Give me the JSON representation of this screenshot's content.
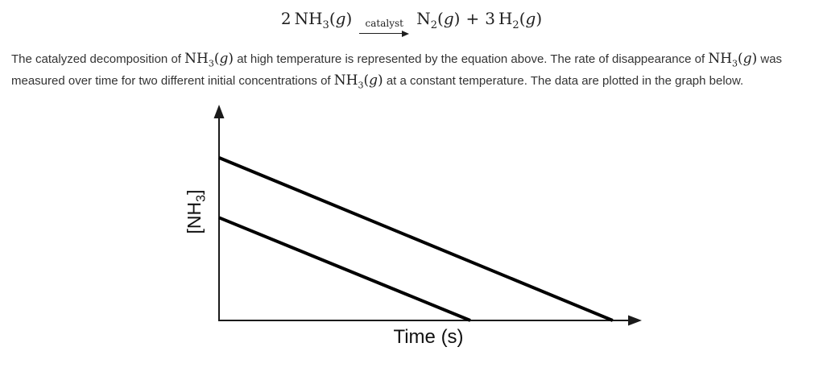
{
  "equation": {
    "reactant_coeff": "2",
    "arrow_label": "catalyst",
    "plus": "+",
    "product2_coeff": "3"
  },
  "chem": {
    "nh3": {
      "base": "NH",
      "sub": "3",
      "paren_open": "(",
      "g": "g",
      "paren_close": ")"
    },
    "n2": {
      "base": "N",
      "sub": "2",
      "paren_open": "(",
      "g": "g",
      "paren_close": ")"
    },
    "h2": {
      "base": "H",
      "sub": "2",
      "paren_open": "(",
      "g": "g",
      "paren_close": ")"
    }
  },
  "problem": {
    "seg1": "The catalyzed decomposition of ",
    "seg2": " at high temperature is represented by the equation above. The rate of disappearance of ",
    "seg3": " was measured over time for two different initial concentrations of ",
    "seg4": " at a constant temperature. The data are plotted in the graph below."
  },
  "chart_data": {
    "type": "line",
    "title": "",
    "xlabel": "Time (s)",
    "ylabel": "[NH3]",
    "ylabel_parts": {
      "pre": "[NH",
      "sub": "3",
      "post": "]"
    },
    "axes_quantitative": false,
    "x_range": [
      0,
      1
    ],
    "y_range": [
      0,
      1
    ],
    "x_tick_labels": [],
    "y_tick_labels": [],
    "grid": false,
    "legend": "none",
    "line_color": "#000000",
    "line_width": 4,
    "series": [
      {
        "name": "higher initial NH3 concentration (upper line, linear decrease)",
        "points": [
          [
            0,
            0.76
          ],
          [
            0.94,
            0
          ]
        ]
      },
      {
        "name": "lower initial NH3 concentration (lower line, linear decrease, parallel slope)",
        "points": [
          [
            0,
            0.48
          ],
          [
            0.6,
            0
          ]
        ]
      }
    ]
  }
}
